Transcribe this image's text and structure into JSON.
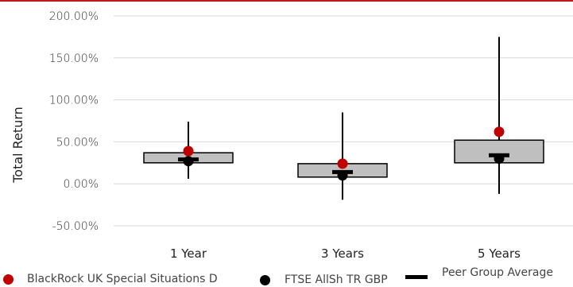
{
  "colors": {
    "accent": "#c0171b",
    "fund": "#c00000",
    "index": "#000000",
    "box_fill": "#bfbfbf",
    "grid": "#d9d9d9"
  },
  "chart_data": {
    "type": "box",
    "ylabel": "Total Return",
    "yticks": [
      "200.00%",
      "150.00%",
      "100.00%",
      "50.00%",
      "0.00%",
      "-50.00%"
    ],
    "yvals": [
      200,
      150,
      100,
      50,
      0,
      -50
    ],
    "ylim": [
      -50,
      200
    ],
    "grid": true,
    "categories": [
      "1 Year",
      "3 Years",
      "5 Years"
    ],
    "ranges": [
      {
        "min": 6,
        "q1": 25,
        "q3": 37,
        "max": 74
      },
      {
        "min": -19,
        "q1": 8,
        "q3": 24,
        "max": 85
      },
      {
        "min": -12,
        "q1": 25,
        "q3": 52,
        "max": 175
      }
    ],
    "series": [
      {
        "name": "BlackRock UK Special Situations D",
        "marker": "dot",
        "values": [
          39,
          24,
          62
        ]
      },
      {
        "name": "FTSE AllSh TR GBP",
        "marker": "dot",
        "values": [
          27,
          10,
          30
        ]
      },
      {
        "name": "Peer Group Average",
        "marker": "dash",
        "values": [
          29,
          14,
          34
        ]
      }
    ],
    "legend_position": "bottom"
  }
}
